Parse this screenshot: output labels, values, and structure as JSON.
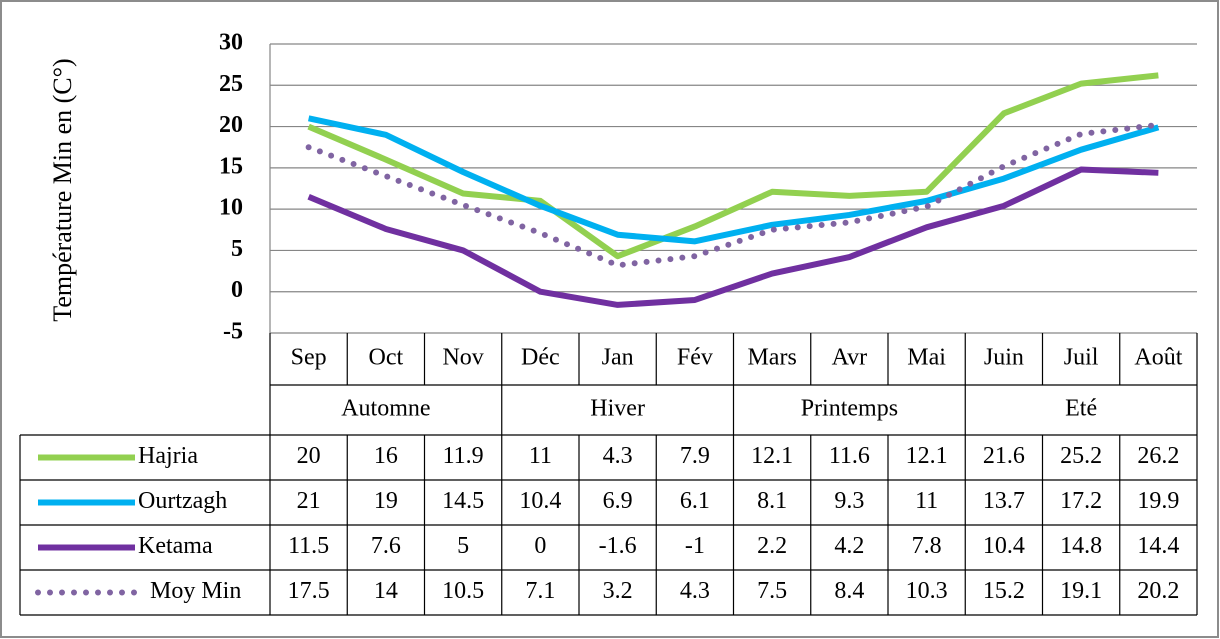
{
  "chart_data": {
    "type": "line",
    "ylabel": "Température Min en (C°)",
    "categories": [
      "Sep",
      "Oct",
      "Nov",
      "Déc",
      "Jan",
      "Fév",
      "Mars",
      "Avr",
      "Mai",
      "Juin",
      "Juil",
      "Août"
    ],
    "groups": [
      "Automne",
      "Hiver",
      "Printemps",
      "Eté"
    ],
    "series": [
      {
        "name": "Hajria",
        "color": "#92d050",
        "style": "solid",
        "values": [
          20,
          16,
          11.9,
          11,
          4.3,
          7.9,
          12.1,
          11.6,
          12.1,
          21.6,
          25.2,
          26.2
        ]
      },
      {
        "name": "Ourtzagh",
        "color": "#00b0f0",
        "style": "solid",
        "values": [
          21,
          19,
          14.5,
          10.4,
          6.9,
          6.1,
          8.1,
          9.3,
          11,
          13.7,
          17.2,
          19.9
        ]
      },
      {
        "name": "Ketama",
        "color": "#7030a0",
        "style": "solid",
        "values": [
          11.5,
          7.6,
          5,
          0,
          -1.6,
          -1,
          2.2,
          4.2,
          7.8,
          10.4,
          14.8,
          14.4
        ]
      },
      {
        "name": "Moy Min",
        "color": "#8064a2",
        "style": "dotted",
        "values": [
          17.5,
          14,
          10.5,
          7.1,
          3.2,
          4.3,
          7.5,
          8.4,
          10.3,
          15.2,
          19.1,
          20.2
        ]
      }
    ],
    "ylim": [
      -5,
      30
    ],
    "yticks": [
      -5,
      0,
      5,
      10,
      15,
      20,
      25,
      30
    ],
    "grid": true
  }
}
